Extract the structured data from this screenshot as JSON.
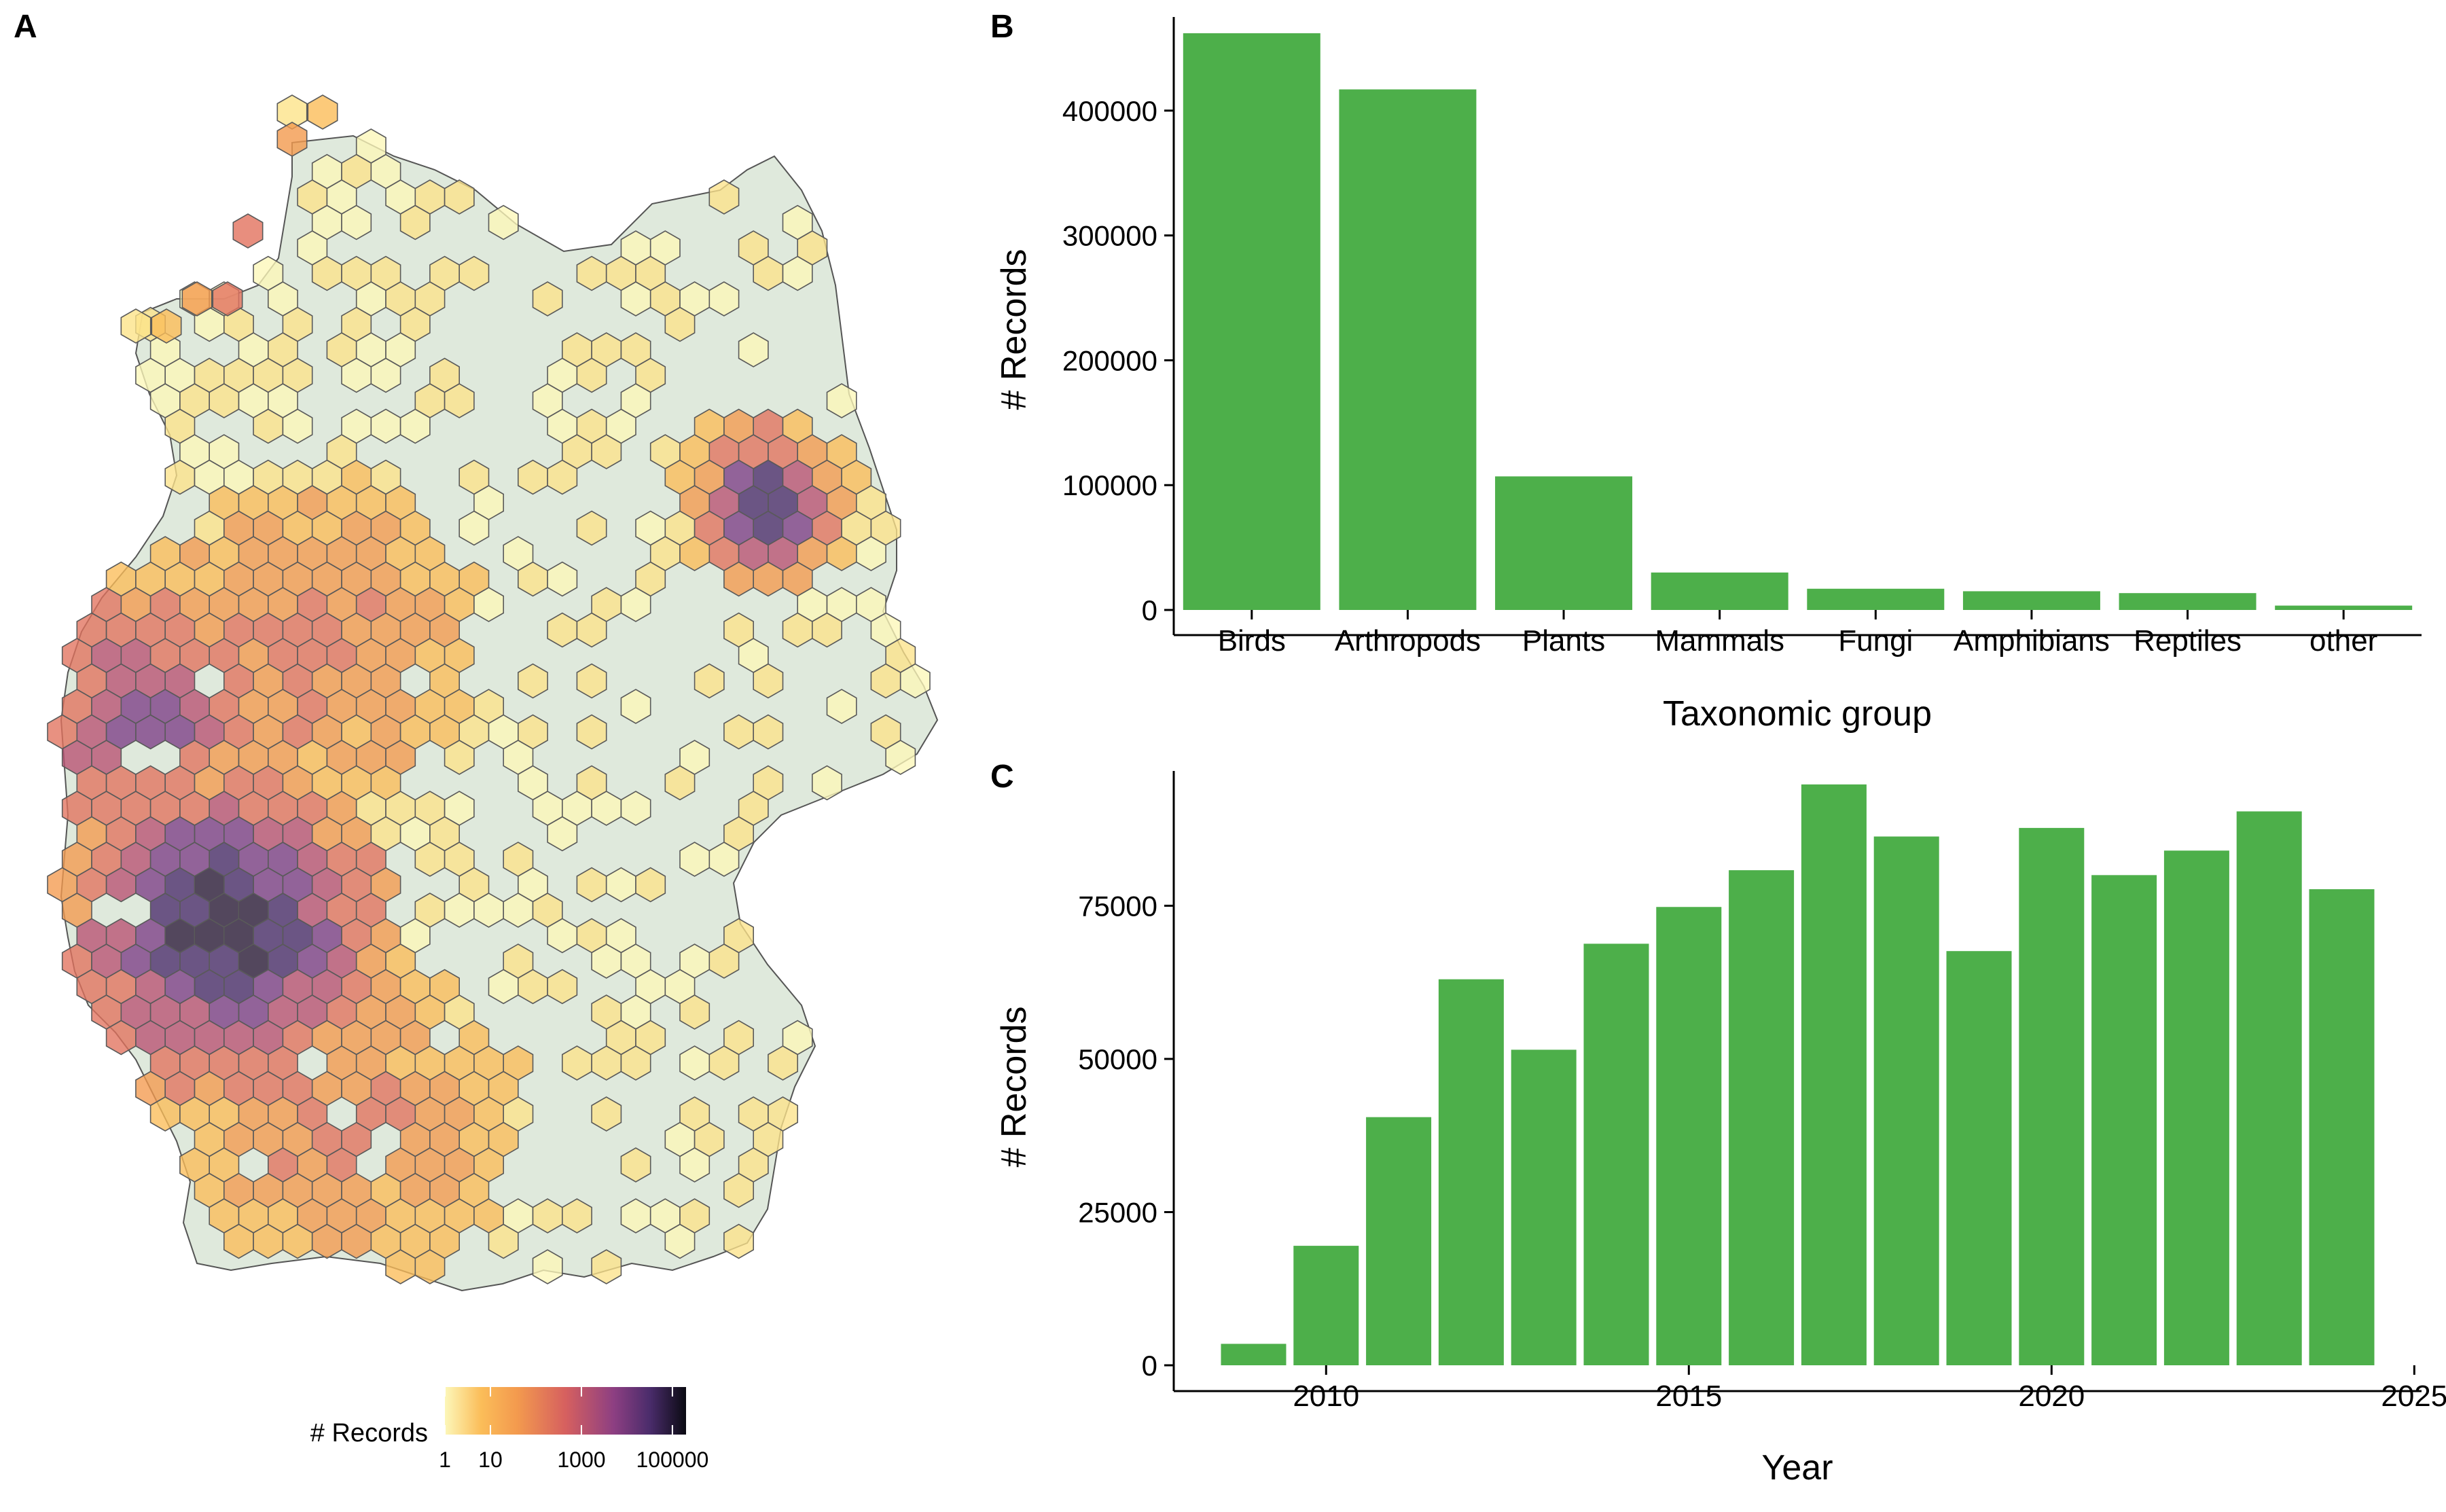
{
  "panels": {
    "a_label": "A",
    "b_label": "B",
    "c_label": "C"
  },
  "map": {
    "legend_title": "# Records",
    "legend_ticks": [
      "1",
      "10",
      "1000",
      "100000"
    ],
    "land_color": "#dfe9dc",
    "border_color": "#555555",
    "palette": [
      "#fcf7b9",
      "#fde38a",
      "#fbbd59",
      "#f39a4e",
      "#e2725e",
      "#b95172",
      "#7c3e86",
      "#4a2c6b",
      "#2b1a3a"
    ]
  },
  "chart_data": [
    {
      "type": "bar",
      "panel": "B",
      "categories": [
        "Birds",
        "Arthropods",
        "Plants",
        "Mammals",
        "Fungi",
        "Amphibians",
        "Reptiles",
        "other"
      ],
      "values": [
        462000,
        417000,
        107000,
        30000,
        17000,
        15000,
        13500,
        3500
      ],
      "xlabel": "Taxonomic group",
      "ylabel": "# Records",
      "ylim": [
        0,
        475000
      ],
      "yticks": [
        0,
        100000,
        200000,
        300000,
        400000
      ],
      "color": "#4daf4a",
      "grid": false
    },
    {
      "type": "bar",
      "panel": "C",
      "categories": [
        2009,
        2010,
        2011,
        2012,
        2013,
        2014,
        2015,
        2016,
        2017,
        2018,
        2019,
        2020,
        2021,
        2022,
        2023,
        2024
      ],
      "values": [
        3500,
        19500,
        40500,
        63000,
        51500,
        68800,
        74800,
        80800,
        94800,
        86300,
        67600,
        87700,
        80000,
        84000,
        90400,
        77700
      ],
      "xlabel": "Year",
      "ylabel": "# Records",
      "xlim": [
        2007.9,
        2025.1
      ],
      "xticks": [
        2010,
        2015,
        2020,
        2025
      ],
      "ylim": [
        0,
        97000
      ],
      "yticks": [
        0,
        25000,
        50000,
        75000
      ],
      "color": "#4daf4a",
      "grid": false
    }
  ]
}
